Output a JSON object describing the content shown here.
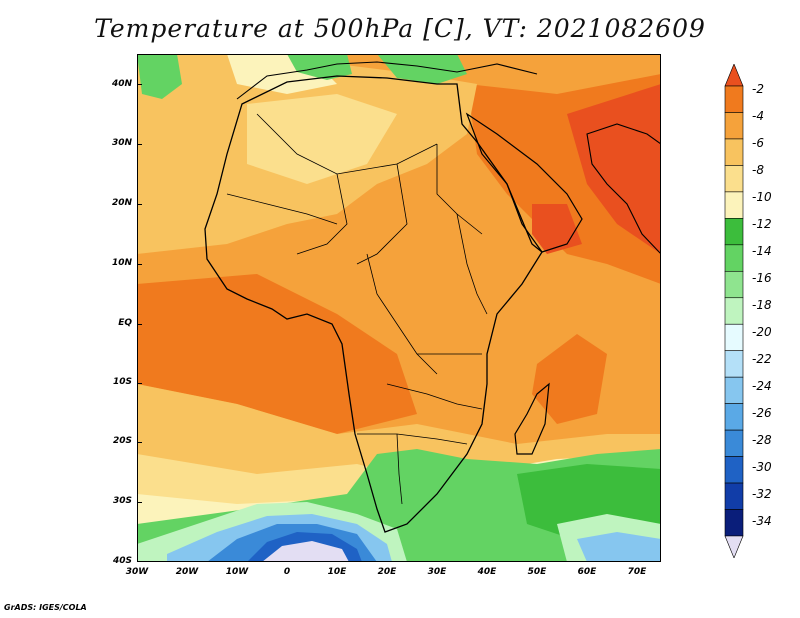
{
  "title": "Temperature at 500hPa [C], VT: 2021082609",
  "credit": "GrADS: IGES/COLA",
  "map": {
    "region": "Africa",
    "lon_range": [
      -30,
      75
    ],
    "lat_range": [
      -40,
      45
    ],
    "lat_labels": [
      "40N",
      "30N",
      "20N",
      "10N",
      "EQ",
      "10S",
      "20S",
      "30S",
      "40S"
    ],
    "lon_labels": [
      "30W",
      "20W",
      "10W",
      "0",
      "10E",
      "20E",
      "30E",
      "40E",
      "50E",
      "60E",
      "70E"
    ]
  },
  "colorbar": {
    "labels": [
      "-2",
      "-4",
      "-6",
      "-8",
      "-10",
      "-12",
      "-14",
      "-16",
      "-18",
      "-20",
      "-22",
      "-24",
      "-26",
      "-28",
      "-30",
      "-32",
      "-34"
    ],
    "colors": [
      "#e9501f",
      "#f07a1e",
      "#f5a23b",
      "#f8c35f",
      "#fbdf8d",
      "#fcf3bb",
      "#3cbd3c",
      "#63d363",
      "#8fe48f",
      "#bff4bf",
      "#e6fbff",
      "#b4e0f8",
      "#86c6ef",
      "#5aa9e6",
      "#3a8ad8",
      "#1f62c5",
      "#113da8",
      "#0a1e7a",
      "#e3def3"
    ]
  }
}
